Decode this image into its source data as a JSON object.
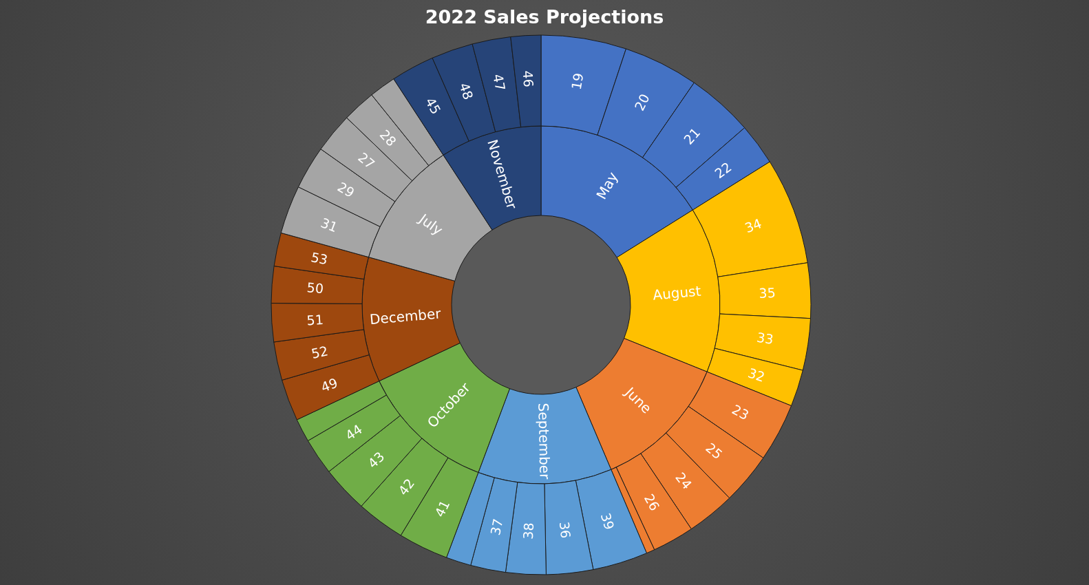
{
  "chart_data": [
    {
      "type": "donut",
      "title": "2022 Sales Projections",
      "categories": [
        "May",
        "August",
        "June",
        "September",
        "October",
        "December",
        "July",
        "November"
      ],
      "values": [
        16.1,
        15.0,
        12.5,
        12.1,
        12.3,
        11.3,
        11.5,
        9.2
      ],
      "colors": [
        "#4472c4",
        "#ffc000",
        "#ed7d31",
        "#5b9bd5",
        "#70ad47",
        "#9e480e",
        "#a5a5a5",
        "#264478"
      ],
      "legend": false
    },
    {
      "type": "donut",
      "categories": [
        "19",
        "20",
        "21",
        "22",
        "34",
        "35",
        "33",
        "32",
        "23",
        "25",
        "24",
        "26",
        null,
        "39",
        "36",
        "38",
        "37",
        null,
        "41",
        "42",
        "43",
        "44",
        null,
        "49",
        "52",
        "51",
        "50",
        "53",
        "31",
        "29",
        "27",
        "28",
        null,
        "45",
        "48",
        "47",
        "46"
      ],
      "values": [
        5.1,
        4.5,
        4.0,
        2.5,
        6.4,
        3.3,
        3.1,
        2.2,
        3.5,
        3.1,
        2.9,
        2.5,
        0.5,
        3.3,
        2.8,
        2.4,
        2.1,
        1.5,
        3.0,
        2.9,
        2.8,
        2.2,
        1.4,
        2.5,
        2.3,
        2.3,
        2.2,
        2.0,
        2.9,
        2.6,
        2.4,
        2.0,
        1.6,
        2.6,
        2.5,
        2.3,
        1.8
      ],
      "colors": [
        "#4472c4",
        "#4472c4",
        "#4472c4",
        "#4472c4",
        "#ffc000",
        "#ffc000",
        "#ffc000",
        "#ffc000",
        "#ed7d31",
        "#ed7d31",
        "#ed7d31",
        "#ed7d31",
        "#ed7d31",
        "#5b9bd5",
        "#5b9bd5",
        "#5b9bd5",
        "#5b9bd5",
        "#5b9bd5",
        "#70ad47",
        "#70ad47",
        "#70ad47",
        "#70ad47",
        "#70ad47",
        "#9e480e",
        "#9e480e",
        "#9e480e",
        "#9e480e",
        "#9e480e",
        "#a5a5a5",
        "#a5a5a5",
        "#a5a5a5",
        "#a5a5a5",
        "#a5a5a5",
        "#264478",
        "#264478",
        "#264478",
        "#264478"
      ],
      "legend": false
    }
  ]
}
